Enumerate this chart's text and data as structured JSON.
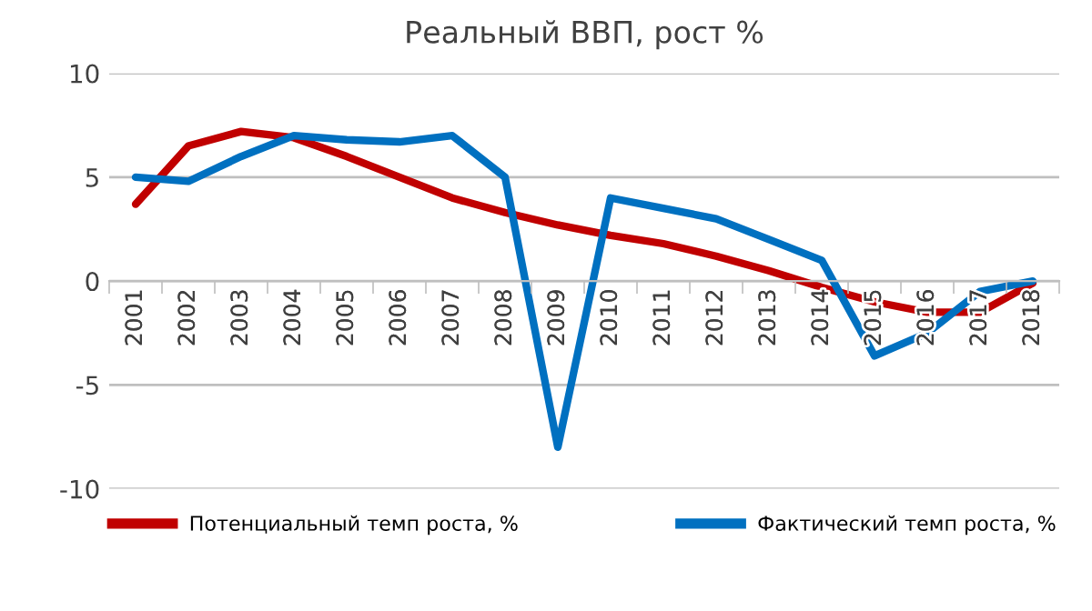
{
  "chart_data": {
    "type": "line",
    "title": "Реальный ВВП, рост %",
    "categories": [
      "2001",
      "2002",
      "2003",
      "2004",
      "2005",
      "2006",
      "2007",
      "2008",
      "2009",
      "2010",
      "2011",
      "2012",
      "2013",
      "2014",
      "2015",
      "2016",
      "2017",
      "2018"
    ],
    "series": [
      {
        "name": "Потенциальный темп роста, %",
        "color": "#c00000",
        "values": [
          3.7,
          6.5,
          7.2,
          6.9,
          6.0,
          5.0,
          4.0,
          3.3,
          2.7,
          2.2,
          1.8,
          1.2,
          0.5,
          -0.3,
          -1.0,
          -1.5,
          -1.5,
          -0.1
        ]
      },
      {
        "name": "Фактический темп роста, %",
        "color": "#0070c0",
        "values": [
          5.0,
          4.8,
          6.0,
          7.0,
          6.8,
          6.7,
          7.0,
          5.0,
          -8.0,
          4.0,
          3.5,
          3.0,
          2.0,
          1.0,
          -3.6,
          -2.5,
          -0.5,
          0.0
        ]
      }
    ],
    "ylim": [
      -10,
      10
    ],
    "yticks": [
      -10,
      -5,
      0,
      5,
      10
    ],
    "grid": "y",
    "legend": "bottom",
    "marker": "none",
    "line_style": "solid"
  }
}
